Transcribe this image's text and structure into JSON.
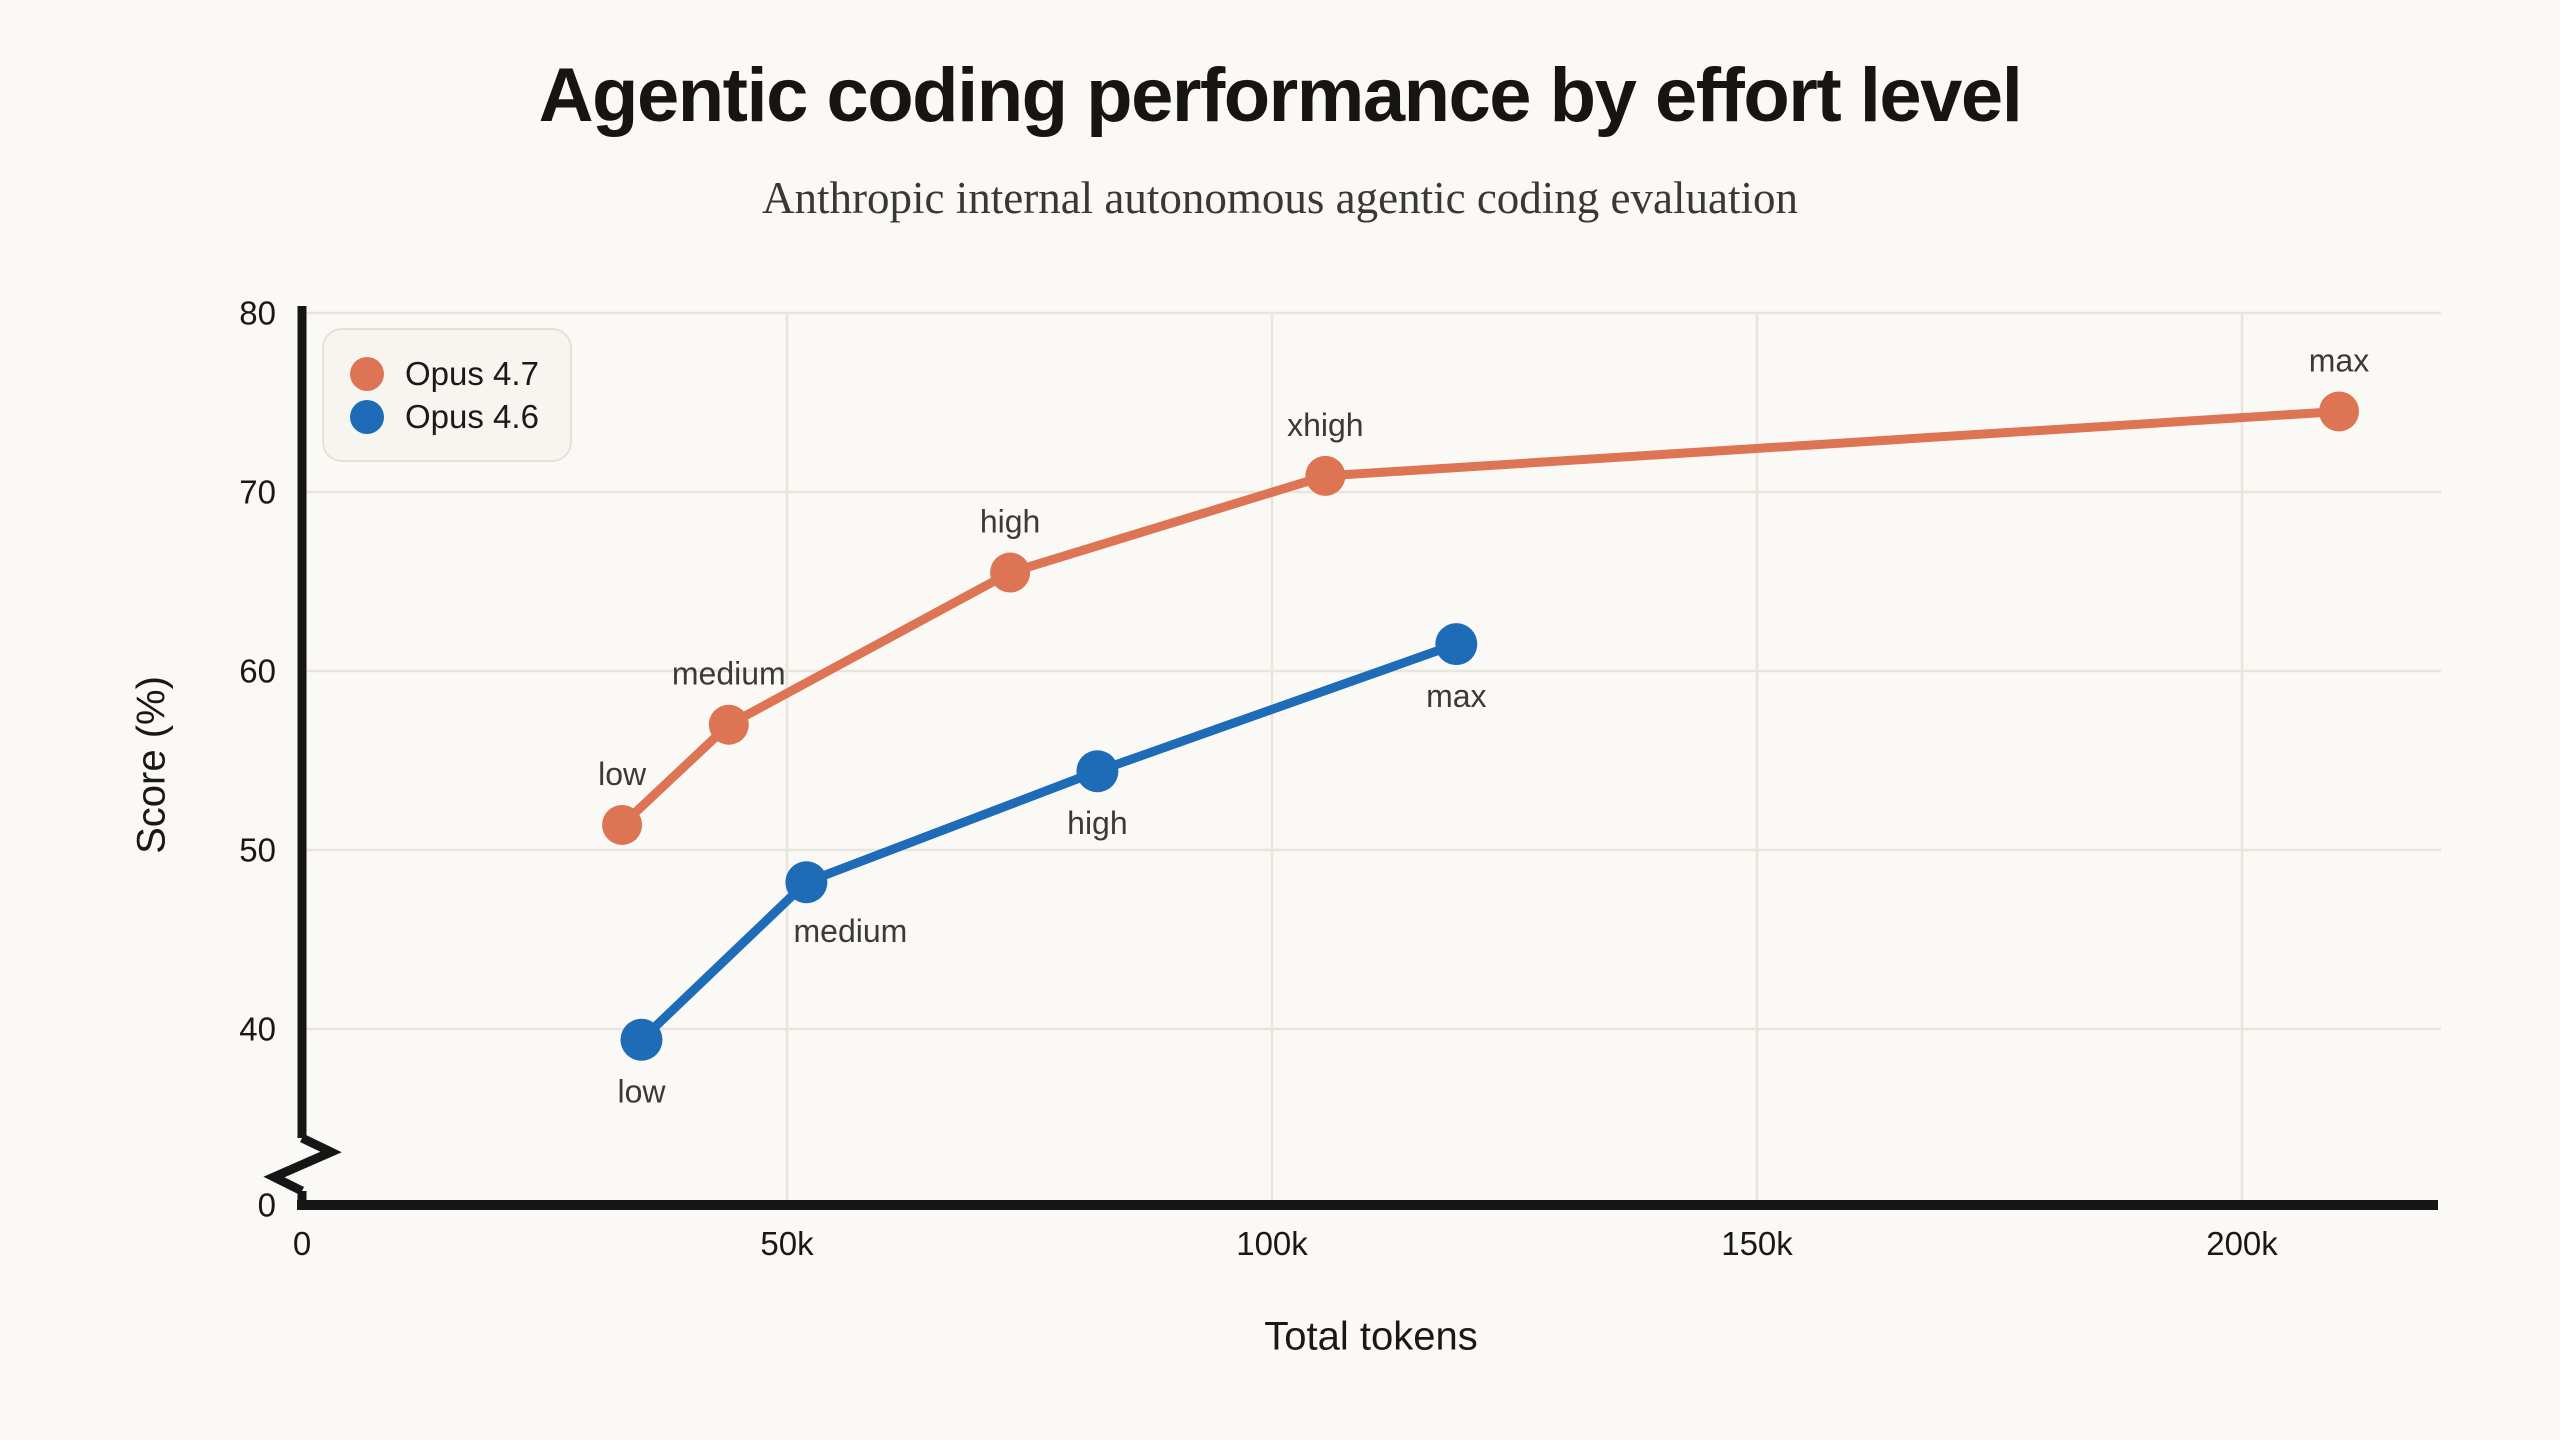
{
  "page": {
    "background": "#faf9f5"
  },
  "header": {
    "title": "Agentic coding performance by effort level",
    "subtitle": "Anthropic internal autonomous agentic coding evaluation"
  },
  "legend": {
    "position": "top-left",
    "entries": [
      {
        "label": "Opus 4.7",
        "color": "#dd7454"
      },
      {
        "label": "Opus 4.6",
        "color": "#1e6bb8"
      }
    ]
  },
  "chart_data": {
    "type": "line",
    "title": "Agentic coding performance by effort level",
    "subtitle": "Anthropic internal autonomous agentic coding evaluation",
    "xlabel": "Total tokens",
    "ylabel": "Score (%)",
    "grid": true,
    "legend_position": "top-left",
    "xlim": [
      0,
      220000
    ],
    "ylim": [
      0,
      80
    ],
    "y_axis_break": {
      "shown": true,
      "between": [
        0,
        40
      ],
      "zero_label": "0"
    },
    "x_ticks": [
      {
        "value": 0,
        "label": "0"
      },
      {
        "value": 50000,
        "label": "50k"
      },
      {
        "value": 100000,
        "label": "100k"
      },
      {
        "value": 150000,
        "label": "150k"
      },
      {
        "value": 200000,
        "label": "200k"
      }
    ],
    "y_ticks": [
      {
        "value": 40,
        "label": "40"
      },
      {
        "value": 50,
        "label": "50"
      },
      {
        "value": 60,
        "label": "60"
      },
      {
        "value": 70,
        "label": "70"
      },
      {
        "value": 80,
        "label": "80"
      }
    ],
    "series": [
      {
        "name": "Opus 4.7",
        "color": "#dd7454",
        "marker_radius": 20,
        "points": [
          {
            "effort": "low",
            "tokens": 33000,
            "score": 51.4,
            "label_pos": "above"
          },
          {
            "effort": "medium",
            "tokens": 44000,
            "score": 57.0,
            "label_pos": "above"
          },
          {
            "effort": "high",
            "tokens": 73000,
            "score": 65.5,
            "label_pos": "above"
          },
          {
            "effort": "xhigh",
            "tokens": 105500,
            "score": 70.9,
            "label_pos": "above"
          },
          {
            "effort": "max",
            "tokens": 210000,
            "score": 74.5,
            "label_pos": "above"
          }
        ]
      },
      {
        "name": "Opus 4.6",
        "color": "#1e6bb8",
        "marker_radius": 21,
        "points": [
          {
            "effort": "low",
            "tokens": 35000,
            "score": 39.4,
            "label_pos": "below"
          },
          {
            "effort": "medium",
            "tokens": 52000,
            "score": 48.2,
            "label_pos": "below-right"
          },
          {
            "effort": "high",
            "tokens": 82000,
            "score": 54.4,
            "label_pos": "below"
          },
          {
            "effort": "max",
            "tokens": 119000,
            "score": 61.5,
            "label_pos": "below"
          }
        ]
      }
    ],
    "colors": {
      "gridline": "#e8e5dd",
      "axis": "#161616",
      "tick_label": "#191814",
      "point_label": "#3c3a35"
    }
  }
}
